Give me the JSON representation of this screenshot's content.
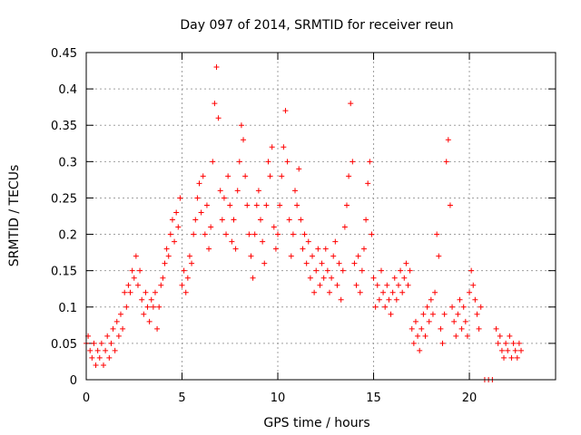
{
  "chart_data": {
    "type": "scatter",
    "title": "Day 097 of 2014, SRMTID for receiver reun",
    "xlabel": "GPS time / hours",
    "ylabel": "SRMTID / TECUs",
    "xlim": [
      0,
      24.5
    ],
    "ylim": [
      0,
      0.45
    ],
    "xticks": [
      0,
      5,
      10,
      15,
      20
    ],
    "xtick_labels": [
      "0",
      "5",
      "10",
      "15",
      "20"
    ],
    "yticks": [
      0,
      0.05,
      0.1,
      0.15,
      0.2,
      0.25,
      0.3,
      0.35,
      0.4,
      0.45
    ],
    "ytick_labels": [
      "0",
      "0.05",
      "0.1",
      "0.15",
      "0.2",
      "0.25",
      "0.3",
      "0.35",
      "0.4",
      "0.45"
    ],
    "grid": true,
    "marker": "+",
    "marker_color": "#ff0000",
    "series": [
      {
        "name": "SRMTID",
        "points": [
          [
            0.0,
            0.05
          ],
          [
            0.1,
            0.06
          ],
          [
            0.2,
            0.04
          ],
          [
            0.3,
            0.03
          ],
          [
            0.4,
            0.05
          ],
          [
            0.5,
            0.02
          ],
          [
            0.6,
            0.04
          ],
          [
            0.7,
            0.03
          ],
          [
            0.8,
            0.05
          ],
          [
            0.9,
            0.02
          ],
          [
            1.0,
            0.04
          ],
          [
            1.1,
            0.06
          ],
          [
            1.2,
            0.03
          ],
          [
            1.3,
            0.05
          ],
          [
            1.4,
            0.07
          ],
          [
            1.5,
            0.04
          ],
          [
            1.6,
            0.08
          ],
          [
            1.7,
            0.06
          ],
          [
            1.8,
            0.09
          ],
          [
            1.9,
            0.07
          ],
          [
            2.0,
            0.12
          ],
          [
            2.1,
            0.1
          ],
          [
            2.2,
            0.13
          ],
          [
            2.3,
            0.12
          ],
          [
            2.4,
            0.15
          ],
          [
            2.5,
            0.14
          ],
          [
            2.6,
            0.17
          ],
          [
            2.7,
            0.13
          ],
          [
            2.8,
            0.15
          ],
          [
            2.9,
            0.11
          ],
          [
            3.0,
            0.09
          ],
          [
            3.1,
            0.12
          ],
          [
            3.2,
            0.1
          ],
          [
            3.3,
            0.08
          ],
          [
            3.4,
            0.11
          ],
          [
            3.5,
            0.1
          ],
          [
            3.6,
            0.12
          ],
          [
            3.7,
            0.07
          ],
          [
            3.8,
            0.1
          ],
          [
            3.9,
            0.13
          ],
          [
            4.0,
            0.14
          ],
          [
            4.1,
            0.16
          ],
          [
            4.2,
            0.18
          ],
          [
            4.3,
            0.17
          ],
          [
            4.4,
            0.2
          ],
          [
            4.5,
            0.22
          ],
          [
            4.6,
            0.19
          ],
          [
            4.7,
            0.23
          ],
          [
            4.8,
            0.21
          ],
          [
            4.9,
            0.25
          ],
          [
            5.0,
            0.13
          ],
          [
            5.1,
            0.15
          ],
          [
            5.2,
            0.12
          ],
          [
            5.3,
            0.14
          ],
          [
            5.4,
            0.17
          ],
          [
            5.5,
            0.16
          ],
          [
            5.6,
            0.2
          ],
          [
            5.7,
            0.22
          ],
          [
            5.8,
            0.25
          ],
          [
            5.9,
            0.27
          ],
          [
            6.0,
            0.23
          ],
          [
            6.1,
            0.28
          ],
          [
            6.2,
            0.2
          ],
          [
            6.3,
            0.24
          ],
          [
            6.4,
            0.18
          ],
          [
            6.5,
            0.21
          ],
          [
            6.6,
            0.3
          ],
          [
            6.7,
            0.38
          ],
          [
            6.8,
            0.43
          ],
          [
            6.9,
            0.36
          ],
          [
            7.0,
            0.26
          ],
          [
            7.1,
            0.22
          ],
          [
            7.2,
            0.25
          ],
          [
            7.3,
            0.2
          ],
          [
            7.4,
            0.28
          ],
          [
            7.5,
            0.24
          ],
          [
            7.6,
            0.19
          ],
          [
            7.7,
            0.22
          ],
          [
            7.8,
            0.18
          ],
          [
            7.9,
            0.26
          ],
          [
            8.0,
            0.3
          ],
          [
            8.1,
            0.35
          ],
          [
            8.2,
            0.33
          ],
          [
            8.3,
            0.28
          ],
          [
            8.4,
            0.24
          ],
          [
            8.5,
            0.2
          ],
          [
            8.6,
            0.17
          ],
          [
            8.7,
            0.14
          ],
          [
            8.8,
            0.2
          ],
          [
            8.9,
            0.24
          ],
          [
            9.0,
            0.26
          ],
          [
            9.1,
            0.22
          ],
          [
            9.2,
            0.19
          ],
          [
            9.3,
            0.16
          ],
          [
            9.4,
            0.24
          ],
          [
            9.5,
            0.3
          ],
          [
            9.6,
            0.28
          ],
          [
            9.7,
            0.32
          ],
          [
            9.8,
            0.21
          ],
          [
            9.9,
            0.18
          ],
          [
            10.0,
            0.2
          ],
          [
            10.1,
            0.24
          ],
          [
            10.2,
            0.28
          ],
          [
            10.3,
            0.32
          ],
          [
            10.4,
            0.37
          ],
          [
            10.5,
            0.3
          ],
          [
            10.6,
            0.22
          ],
          [
            10.7,
            0.17
          ],
          [
            10.8,
            0.2
          ],
          [
            10.9,
            0.26
          ],
          [
            11.0,
            0.24
          ],
          [
            11.1,
            0.29
          ],
          [
            11.2,
            0.22
          ],
          [
            11.3,
            0.18
          ],
          [
            11.4,
            0.2
          ],
          [
            11.5,
            0.16
          ],
          [
            11.6,
            0.19
          ],
          [
            11.7,
            0.14
          ],
          [
            11.8,
            0.17
          ],
          [
            11.9,
            0.12
          ],
          [
            12.0,
            0.15
          ],
          [
            12.1,
            0.18
          ],
          [
            12.2,
            0.13
          ],
          [
            12.3,
            0.16
          ],
          [
            12.4,
            0.14
          ],
          [
            12.5,
            0.18
          ],
          [
            12.6,
            0.15
          ],
          [
            12.7,
            0.12
          ],
          [
            12.8,
            0.14
          ],
          [
            12.9,
            0.17
          ],
          [
            13.0,
            0.19
          ],
          [
            13.1,
            0.13
          ],
          [
            13.2,
            0.16
          ],
          [
            13.3,
            0.11
          ],
          [
            13.4,
            0.15
          ],
          [
            13.5,
            0.21
          ],
          [
            13.6,
            0.24
          ],
          [
            13.7,
            0.28
          ],
          [
            13.8,
            0.38
          ],
          [
            13.9,
            0.3
          ],
          [
            14.0,
            0.16
          ],
          [
            14.1,
            0.13
          ],
          [
            14.2,
            0.17
          ],
          [
            14.3,
            0.12
          ],
          [
            14.4,
            0.15
          ],
          [
            14.5,
            0.18
          ],
          [
            14.6,
            0.22
          ],
          [
            14.7,
            0.27
          ],
          [
            14.8,
            0.3
          ],
          [
            14.9,
            0.2
          ],
          [
            15.0,
            0.14
          ],
          [
            15.1,
            0.1
          ],
          [
            15.2,
            0.13
          ],
          [
            15.3,
            0.11
          ],
          [
            15.4,
            0.15
          ],
          [
            15.5,
            0.12
          ],
          [
            15.6,
            0.1
          ],
          [
            15.7,
            0.13
          ],
          [
            15.8,
            0.11
          ],
          [
            15.9,
            0.09
          ],
          [
            16.0,
            0.12
          ],
          [
            16.1,
            0.14
          ],
          [
            16.2,
            0.11
          ],
          [
            16.3,
            0.13
          ],
          [
            16.4,
            0.15
          ],
          [
            16.5,
            0.12
          ],
          [
            16.6,
            0.14
          ],
          [
            16.7,
            0.16
          ],
          [
            16.8,
            0.13
          ],
          [
            16.9,
            0.15
          ],
          [
            17.0,
            0.07
          ],
          [
            17.1,
            0.05
          ],
          [
            17.2,
            0.08
          ],
          [
            17.3,
            0.06
          ],
          [
            17.4,
            0.04
          ],
          [
            17.5,
            0.07
          ],
          [
            17.6,
            0.09
          ],
          [
            17.7,
            0.06
          ],
          [
            17.8,
            0.1
          ],
          [
            17.9,
            0.08
          ],
          [
            18.0,
            0.11
          ],
          [
            18.1,
            0.09
          ],
          [
            18.2,
            0.12
          ],
          [
            18.3,
            0.2
          ],
          [
            18.4,
            0.17
          ],
          [
            18.5,
            0.07
          ],
          [
            18.6,
            0.05
          ],
          [
            18.7,
            0.09
          ],
          [
            18.8,
            0.3
          ],
          [
            18.9,
            0.33
          ],
          [
            19.0,
            0.24
          ],
          [
            19.1,
            0.1
          ],
          [
            19.2,
            0.08
          ],
          [
            19.3,
            0.06
          ],
          [
            19.4,
            0.09
          ],
          [
            19.5,
            0.11
          ],
          [
            19.6,
            0.07
          ],
          [
            19.7,
            0.1
          ],
          [
            19.8,
            0.08
          ],
          [
            19.9,
            0.06
          ],
          [
            20.0,
            0.12
          ],
          [
            20.1,
            0.15
          ],
          [
            20.2,
            0.13
          ],
          [
            20.3,
            0.11
          ],
          [
            20.4,
            0.09
          ],
          [
            20.5,
            0.07
          ],
          [
            20.6,
            0.1
          ],
          [
            20.8,
            0.0
          ],
          [
            21.0,
            0.0
          ],
          [
            21.2,
            0.0
          ],
          [
            21.4,
            0.07
          ],
          [
            21.5,
            0.05
          ],
          [
            21.6,
            0.06
          ],
          [
            21.7,
            0.04
          ],
          [
            21.8,
            0.03
          ],
          [
            21.9,
            0.05
          ],
          [
            22.0,
            0.04
          ],
          [
            22.1,
            0.06
          ],
          [
            22.2,
            0.03
          ],
          [
            22.3,
            0.05
          ],
          [
            22.4,
            0.04
          ],
          [
            22.5,
            0.03
          ],
          [
            22.6,
            0.05
          ],
          [
            22.7,
            0.04
          ]
        ]
      }
    ]
  }
}
